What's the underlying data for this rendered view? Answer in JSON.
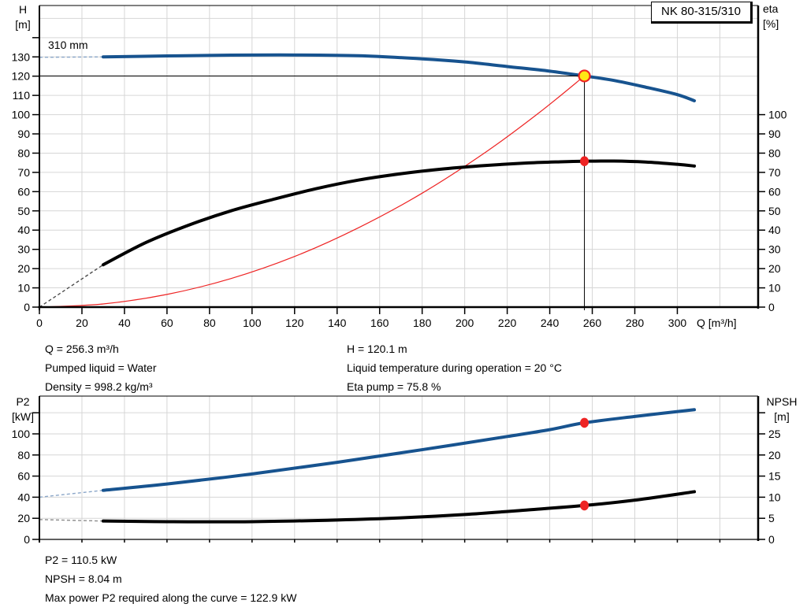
{
  "pump_model": "NK 80-315/310",
  "colors": {
    "curve_blue": "#17538f",
    "curve_black": "#000000",
    "red": "#ee2424",
    "duty_fill": "#ffe715",
    "grid": "#d6d6d6",
    "axis": "#000000",
    "lead_blue": "#8aa6c8",
    "lead_gray": "#8c8c8c",
    "lead_dark": "#4d4d4d"
  },
  "top_info": {
    "left": [
      "Q = 256.3 m³/h",
      "Pumped liquid = Water",
      "Density = 998.2 kg/m³"
    ],
    "right": [
      "H = 120.1 m",
      "Liquid temperature during operation = 20 °C",
      "Eta pump = 75.8 %"
    ]
  },
  "bottom_info": [
    "P2 = 110.5 kW",
    "NPSH = 8.04 m",
    "Max power P2 required along the curve = 122.9 kW"
  ],
  "chart_data": [
    {
      "type": "line",
      "name": "QH-eta-performance-chart",
      "title": "NK 80-315/310",
      "xlabel": "Q [m³/h]",
      "ylabel_left_line1": "H",
      "ylabel_left_line2": "[m]",
      "ylabel_right_line1": "eta",
      "ylabel_right_line2": "[%]",
      "curve_label": "310 mm",
      "xlim": [
        0,
        338
      ],
      "x_ticks": [
        0,
        20,
        40,
        60,
        80,
        100,
        120,
        140,
        160,
        180,
        200,
        220,
        240,
        260,
        280,
        300
      ],
      "x_grid_step": 20,
      "x_grid_max": 320,
      "ylim_left": [
        0,
        156.7
      ],
      "y_ticks_left": [
        0,
        10,
        20,
        30,
        40,
        50,
        60,
        70,
        80,
        90,
        100,
        110,
        120,
        130
      ],
      "y_ticks_left_unlabeled": [
        140
      ],
      "y_grid_step_left": 10,
      "y_grid_max_left": 150,
      "ylim_right": [
        0,
        156.7
      ],
      "y_ticks_right": [
        0,
        10,
        20,
        30,
        40,
        50,
        60,
        70,
        80,
        90,
        100
      ],
      "y_ticks_right_unlabeled": [],
      "series": [
        {
          "name": "system-curve",
          "axis": "left",
          "color_key": "red",
          "width": 1.2,
          "points": [
            [
              0,
              0
            ],
            [
              30,
              1.65
            ],
            [
              60,
              6.6
            ],
            [
              90,
              14.8
            ],
            [
              120,
              26.3
            ],
            [
              150,
              41.2
            ],
            [
              180,
              59.2
            ],
            [
              210,
              80.6
            ],
            [
              235,
              101.0
            ],
            [
              256.3,
              120.1
            ]
          ]
        },
        {
          "name": "efficiency-curve",
          "axis": "right",
          "color_key": "curve_black",
          "width": 4,
          "lead": {
            "color_key": "lead_dark",
            "points": [
              [
                0,
                0
              ],
              [
                30,
                22
              ]
            ]
          },
          "points": [
            [
              30,
              22
            ],
            [
              50,
              33.5
            ],
            [
              70,
              42.5
            ],
            [
              90,
              50
            ],
            [
              110,
              56
            ],
            [
              130,
              61.5
            ],
            [
              150,
              66
            ],
            [
              170,
              69.3
            ],
            [
              190,
              71.8
            ],
            [
              210,
              73.6
            ],
            [
              230,
              74.9
            ],
            [
              245,
              75.5
            ],
            [
              256.3,
              75.8
            ],
            [
              270,
              75.9
            ],
            [
              285,
              75.4
            ],
            [
              300,
              74.2
            ],
            [
              308,
              73.3
            ]
          ]
        },
        {
          "name": "head-curve-310mm",
          "axis": "left",
          "color_key": "curve_blue",
          "width": 4,
          "lead": {
            "color_key": "lead_blue",
            "points": [
              [
                0,
                129.8
              ],
              [
                30,
                130
              ]
            ]
          },
          "points": [
            [
              30,
              130
            ],
            [
              60,
              130.5
            ],
            [
              90,
              130.9
            ],
            [
              120,
              131
            ],
            [
              150,
              130.6
            ],
            [
              180,
              129
            ],
            [
              200,
              127.4
            ],
            [
              220,
              125
            ],
            [
              240,
              122.6
            ],
            [
              256.3,
              120.1
            ],
            [
              270,
              117.8
            ],
            [
              285,
              114.3
            ],
            [
              300,
              110.4
            ],
            [
              308,
              107.2
            ]
          ]
        }
      ],
      "duty_point": {
        "q": 256.3,
        "h": 120.1,
        "eta": 75.8
      },
      "ref_lines": {
        "horizontal_h": 120.1,
        "vertical_q": 256.3
      },
      "markers": [
        {
          "q": 256.3,
          "v": 75.8,
          "axis": "right",
          "kind": "dot"
        },
        {
          "q": 256.3,
          "v": 120.1,
          "axis": "left",
          "kind": "duty"
        }
      ]
    },
    {
      "type": "line",
      "name": "P2-NPSH-chart",
      "xlabel": "",
      "ylabel_left_line1": "P2",
      "ylabel_left_line2": "[kW]",
      "ylabel_right_line1": "NPSH",
      "ylabel_right_line2": "[m]",
      "xlim": [
        0,
        338
      ],
      "x_ticks": [],
      "x_ticks_unlabeled": [
        20,
        40,
        60,
        80,
        100,
        120,
        140,
        160,
        180,
        200,
        220,
        240,
        260,
        280,
        300,
        320
      ],
      "x_grid_step": 20,
      "x_grid_max": 320,
      "ylim_left": [
        0,
        135.8
      ],
      "y_ticks_left": [
        0,
        20,
        40,
        60,
        80,
        100
      ],
      "y_ticks_left_unlabeled": [
        120
      ],
      "y_grid_step_left": 20,
      "y_grid_max_left": 120,
      "ylim_right": [
        0,
        33.95
      ],
      "y_ticks_right": [
        0,
        5,
        10,
        15,
        20,
        25
      ],
      "y_ticks_right_unlabeled": [
        30
      ],
      "series": [
        {
          "name": "p2-curve",
          "axis": "left",
          "color_key": "curve_blue",
          "width": 4,
          "lead": {
            "color_key": "lead_blue",
            "points": [
              [
                0,
                40
              ],
              [
                30,
                46.5
              ]
            ]
          },
          "points": [
            [
              30,
              46.5
            ],
            [
              60,
              52.5
            ],
            [
              100,
              62
            ],
            [
              140,
              73
            ],
            [
              180,
              85
            ],
            [
              220,
              97.5
            ],
            [
              240,
              104
            ],
            [
              256.3,
              110.5
            ],
            [
              280,
              116.5
            ],
            [
              308,
              122.9
            ]
          ]
        },
        {
          "name": "npsh-curve",
          "axis": "right",
          "color_key": "curve_black",
          "width": 4,
          "lead": {
            "color_key": "lead_gray",
            "points": [
              [
                0,
                4.7
              ],
              [
                30,
                4.35
              ]
            ]
          },
          "points": [
            [
              30,
              4.35
            ],
            [
              60,
              4.2
            ],
            [
              100,
              4.2
            ],
            [
              140,
              4.6
            ],
            [
              170,
              5.1
            ],
            [
              200,
              5.9
            ],
            [
              230,
              7.0
            ],
            [
              256.3,
              8.04
            ],
            [
              280,
              9.3
            ],
            [
              308,
              11.3
            ]
          ]
        }
      ],
      "duty_point": {
        "q": 256.3,
        "p2": 110.5,
        "npsh": 8.04
      },
      "markers": [
        {
          "q": 256.3,
          "v": 110.5,
          "axis": "left",
          "kind": "dot"
        },
        {
          "q": 256.3,
          "v": 8.04,
          "axis": "right",
          "kind": "dot"
        }
      ]
    }
  ]
}
